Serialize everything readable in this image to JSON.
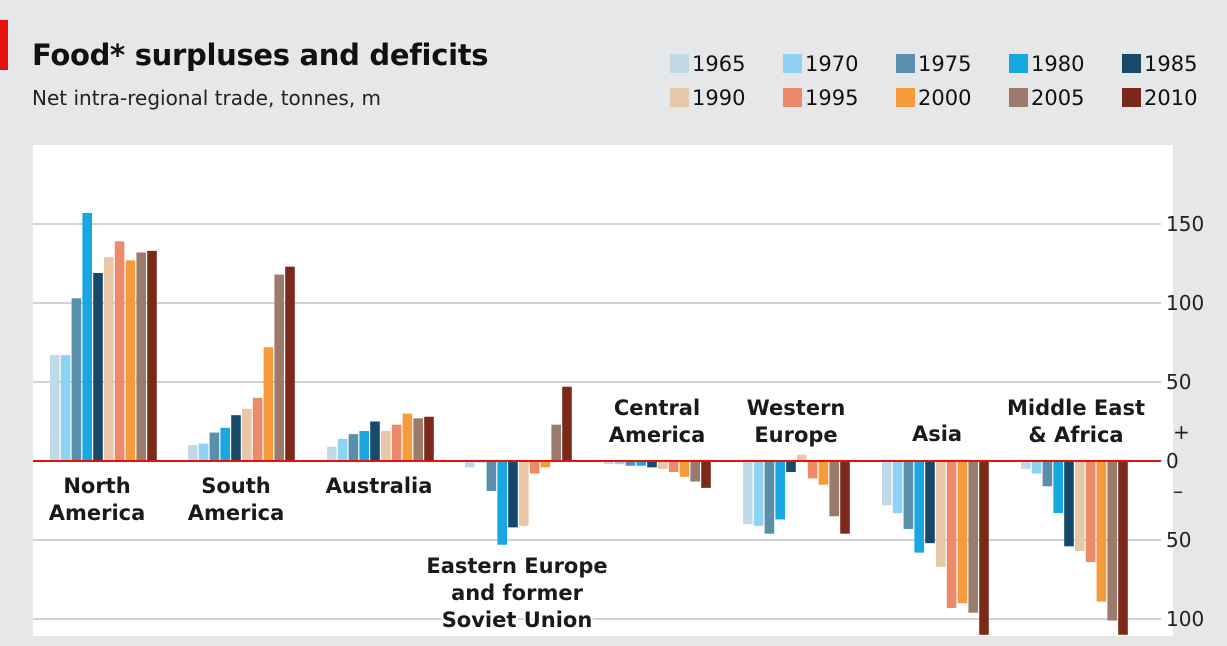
{
  "header": {
    "title": "Food* surpluses and deficits",
    "subtitle": "Net intra-regional trade, tonnes, m"
  },
  "legend": [
    {
      "label": "1965",
      "color": "#c0d9e6"
    },
    {
      "label": "1970",
      "color": "#8dd3f3"
    },
    {
      "label": "1975",
      "color": "#5a8fab"
    },
    {
      "label": "1980",
      "color": "#18a7e0"
    },
    {
      "label": "1985",
      "color": "#16496a"
    },
    {
      "label": "1990",
      "color": "#e8c6a8"
    },
    {
      "label": "1995",
      "color": "#ec8a6a"
    },
    {
      "label": "2000",
      "color": "#f69a3b"
    },
    {
      "label": "2005",
      "color": "#9c7a6c"
    },
    {
      "label": "2010",
      "color": "#7b2a19"
    }
  ],
  "chart_data": {
    "type": "bar",
    "title": "Food* surpluses and deficits",
    "subtitle": "Net intra-regional trade, tonnes, m",
    "ylabel": "",
    "ylim": [
      -110,
      190
    ],
    "grid": true,
    "ytick_values": [
      150,
      100,
      50,
      0,
      -50,
      -100
    ],
    "ytick_labels": [
      "150",
      "100",
      "50",
      "0",
      "50",
      "100"
    ],
    "sign_markers": {
      "positive": "+",
      "negative": "–"
    },
    "baseline_color": "#e3120b",
    "legend_placement": "top-right",
    "categories": [
      "North America",
      "South America",
      "Australia",
      "Eastern Europe and former Soviet Union",
      "Central America",
      "Western Europe",
      "Asia",
      "Middle East & Africa"
    ],
    "category_label_lines": [
      [
        "North",
        "America"
      ],
      [
        "South",
        "America"
      ],
      [
        "Australia"
      ],
      [
        "Eastern Europe",
        "and former",
        "Soviet Union"
      ],
      [
        "Central",
        "America"
      ],
      [
        "Western",
        "Europe"
      ],
      [
        "Asia"
      ],
      [
        "Middle East",
        "& Africa"
      ]
    ],
    "series": [
      {
        "name": "1965",
        "values": [
          67,
          10,
          9,
          -4,
          -2,
          -40,
          -28,
          -5
        ]
      },
      {
        "name": "1970",
        "values": [
          67,
          11,
          14,
          -1,
          -2,
          -41,
          -33,
          -8
        ]
      },
      {
        "name": "1975",
        "values": [
          103,
          18,
          17,
          -19,
          -3,
          -46,
          -43,
          -16
        ]
      },
      {
        "name": "1980",
        "values": [
          157,
          21,
          19,
          -53,
          -3,
          -37,
          -58,
          -33
        ]
      },
      {
        "name": "1985",
        "values": [
          119,
          29,
          25,
          -42,
          -4,
          -7,
          -52,
          -54
        ]
      },
      {
        "name": "1990",
        "values": [
          129,
          33,
          19,
          -41,
          -5,
          4,
          -67,
          -57
        ]
      },
      {
        "name": "1995",
        "values": [
          139,
          40,
          23,
          -8,
          -7,
          -11,
          -93,
          -64
        ]
      },
      {
        "name": "2000",
        "values": [
          127,
          72,
          30,
          -4,
          -10,
          -15,
          -90,
          -89
        ]
      },
      {
        "name": "2005",
        "values": [
          132,
          118,
          27,
          23,
          -13,
          -35,
          -96,
          -101
        ]
      },
      {
        "name": "2010",
        "values": [
          133,
          123,
          28,
          47,
          -17,
          -46,
          -110,
          -110
        ]
      }
    ]
  }
}
